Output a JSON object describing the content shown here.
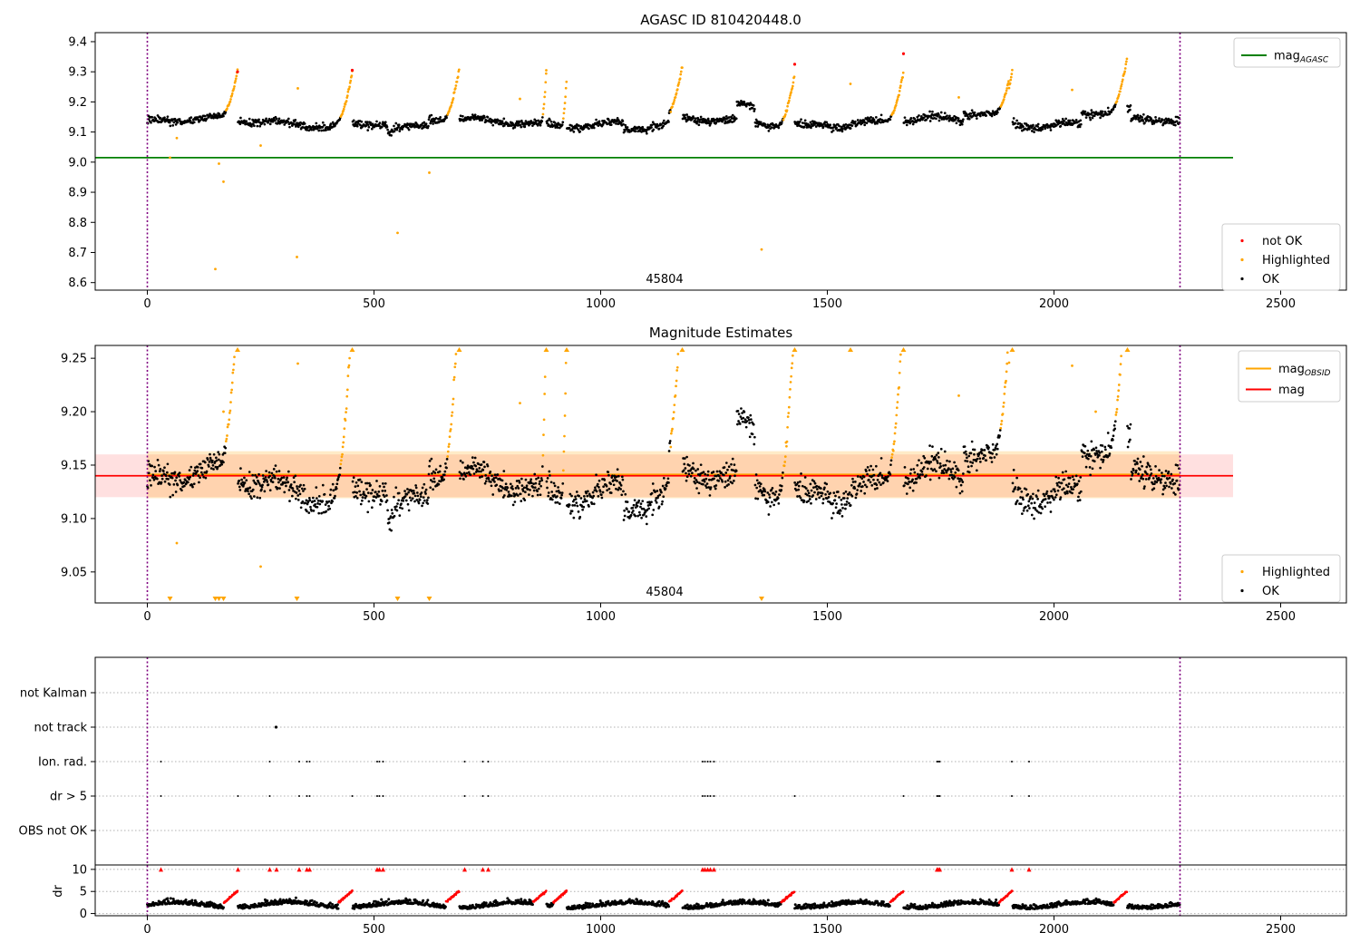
{
  "chart_data": [
    {
      "type": "scatter",
      "title": "AGASC ID 810420448.0",
      "xlim": [
        -115,
        2645
      ],
      "ylim": [
        8.575,
        9.43
      ],
      "x_ticks": [
        0,
        500,
        1000,
        1500,
        2000,
        2500
      ],
      "y_ticks": [
        8.6,
        8.7,
        8.8,
        8.9,
        9.0,
        9.1,
        9.2,
        9.3,
        9.4
      ],
      "y_tick_labels": [
        "8.6",
        "8.7",
        "8.8",
        "8.9",
        "9.0",
        "9.1",
        "9.2",
        "9.3",
        "9.4"
      ],
      "annotation": "45804",
      "obs_bounds": [
        0,
        2278
      ],
      "lines": [
        {
          "label": "mag",
          "sub": "AGASC",
          "value": 9.015,
          "x_range": [
            -115,
            2395
          ],
          "color": "#008000"
        }
      ],
      "legend_upper": {
        "placement": "upper-right",
        "entries": [
          {
            "label": "mag",
            "sub": "AGASC",
            "color": "#008000",
            "kind": "line"
          }
        ]
      },
      "legend_lower": {
        "placement": "lower-right",
        "entries": [
          {
            "label": "not OK",
            "color": "#ff0000",
            "kind": "dot"
          },
          {
            "label": "Highlighted",
            "color": "#ffa500",
            "kind": "dot"
          },
          {
            "label": "OK",
            "color": "#000000",
            "kind": "dot"
          }
        ]
      },
      "highlighted_outliers": [
        {
          "x": 50,
          "y": 9.015
        },
        {
          "x": 65,
          "y": 9.08
        },
        {
          "x": 150,
          "y": 8.645
        },
        {
          "x": 158,
          "y": 8.995
        },
        {
          "x": 168,
          "y": 8.935
        },
        {
          "x": 250,
          "y": 9.055
        },
        {
          "x": 330,
          "y": 8.685
        },
        {
          "x": 332,
          "y": 9.245
        },
        {
          "x": 552,
          "y": 8.765
        },
        {
          "x": 622,
          "y": 8.965
        },
        {
          "x": 822,
          "y": 9.21
        },
        {
          "x": 880,
          "y": 9.305
        },
        {
          "x": 1355,
          "y": 8.71
        },
        {
          "x": 1551,
          "y": 9.26
        },
        {
          "x": 1790,
          "y": 9.215
        },
        {
          "x": 2040,
          "y": 9.24
        }
      ],
      "not_ok_points": [
        {
          "x": 199,
          "y": 9.3
        },
        {
          "x": 452,
          "y": 9.305
        },
        {
          "x": 1428,
          "y": 9.325
        },
        {
          "x": 1668,
          "y": 9.36
        }
      ]
    },
    {
      "type": "scatter",
      "title": "Magnitude Estimates",
      "xlim": [
        -115,
        2645
      ],
      "ylim": [
        9.021,
        9.262
      ],
      "x_ticks": [
        0,
        500,
        1000,
        1500,
        2000,
        2500
      ],
      "y_ticks": [
        9.05,
        9.1,
        9.15,
        9.2,
        9.25
      ],
      "y_tick_labels": [
        "9.05",
        "9.10",
        "9.15",
        "9.20",
        "9.25"
      ],
      "annotation": "45804",
      "obs_bounds": [
        0,
        2278
      ],
      "lines": [
        {
          "label": "mag",
          "sub": "OBSID",
          "value": 9.141,
          "x_range": [
            0,
            2278
          ],
          "color": "#ffa500",
          "band": [
            9.119,
            9.163
          ]
        },
        {
          "label": "mag",
          "sub": "",
          "value": 9.14,
          "x_range": [
            -115,
            2395
          ],
          "color": "#ff0000",
          "band": [
            9.12,
            9.16
          ]
        }
      ],
      "legend_upper": {
        "placement": "upper-right",
        "entries": [
          {
            "label": "mag",
            "sub": "OBSID",
            "color": "#ffa500",
            "kind": "line"
          },
          {
            "label": "mag",
            "sub": "",
            "color": "#ff0000",
            "kind": "line"
          }
        ]
      },
      "legend_lower": {
        "placement": "lower-right",
        "entries": [
          {
            "label": "Highlighted",
            "color": "#ffa500",
            "kind": "dot"
          },
          {
            "label": "OK",
            "color": "#000000",
            "kind": "dot"
          }
        ]
      },
      "highlighted_outliers": [
        {
          "x": 168,
          "y": 9.2
        },
        {
          "x": 250,
          "y": 9.055
        },
        {
          "x": 332,
          "y": 9.245
        },
        {
          "x": 65,
          "y": 9.077
        },
        {
          "x": 822,
          "y": 9.208
        },
        {
          "x": 1790,
          "y": 9.215
        },
        {
          "x": 2040,
          "y": 9.243
        },
        {
          "x": 2092,
          "y": 9.2
        }
      ],
      "up_markers_x": [
        199,
        452,
        688,
        880,
        925,
        1180,
        1428,
        1551,
        1668,
        1908,
        2162
      ],
      "down_markers_x": [
        50,
        150,
        158,
        168,
        330,
        552,
        622,
        1355
      ]
    },
    {
      "type": "scatter",
      "xlim": [
        -115,
        2645
      ],
      "x_ticks": [
        0,
        500,
        1000,
        1500,
        2000,
        2500
      ],
      "obs_bounds": [
        0,
        2278
      ],
      "flag_rows": [
        "not Kalman",
        "not track",
        "Ion. rad.",
        "dr > 5",
        "OBS not OK"
      ],
      "flags": {
        "not Kalman": [],
        "not track": [
          284
        ],
        "Ion. rad.": [
          30,
          270,
          335,
          352,
          358,
          507,
          512,
          520,
          700,
          740,
          752,
          1225,
          1230,
          1236,
          1242,
          1250,
          1742,
          1745,
          1748,
          1907,
          1945
        ],
        "dr > 5": [
          30,
          200,
          270,
          335,
          352,
          358,
          452,
          507,
          512,
          520,
          700,
          740,
          752,
          1225,
          1230,
          1236,
          1242,
          1250,
          1428,
          1668,
          1742,
          1745,
          1748,
          1907,
          1945
        ],
        "OBS not OK": []
      },
      "dr": {
        "ylabel": "dr",
        "ylim": [
          -0.5,
          11
        ],
        "y_ticks": [
          0,
          5,
          10
        ],
        "y_tick_labels": [
          "0",
          "5",
          "10"
        ],
        "clipped_x": [
          30,
          200,
          270,
          285,
          335,
          352,
          358,
          507,
          512,
          520,
          700,
          740,
          752,
          1225,
          1230,
          1236,
          1242,
          1250,
          1742,
          1745,
          1748,
          1907,
          1945
        ]
      }
    }
  ]
}
